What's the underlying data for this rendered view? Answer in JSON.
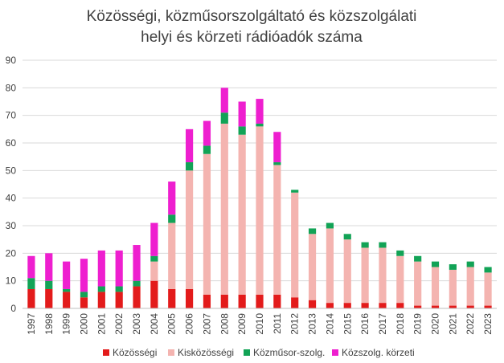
{
  "chart_data": {
    "type": "bar",
    "stacked": true,
    "title": [
      "Közösségi, közműsorszolgáltató és közszolgálati",
      "helyi és körzeti  rádióadók száma"
    ],
    "xlabel": "",
    "ylabel": "",
    "ylim": [
      0,
      90
    ],
    "yticks": [
      "0",
      "10",
      "20",
      "30",
      "40",
      "50",
      "60",
      "70",
      "80",
      "90"
    ],
    "grid": true,
    "legend_position": "bottom",
    "categories": [
      "1997",
      "1998",
      "1999",
      "2000",
      "2001",
      "2002",
      "2003",
      "2004",
      "2005",
      "2006",
      "2007",
      "2008",
      "2009",
      "2010",
      "2011",
      "2012",
      "2013",
      "2014",
      "2015",
      "2016",
      "2017",
      "2018",
      "2019",
      "2020",
      "2021",
      "2022",
      "2023"
    ],
    "series": [
      {
        "name": "Közösségi",
        "color": "#e31b1b",
        "values": [
          7,
          7,
          6,
          4,
          6,
          6,
          8,
          10,
          7,
          7,
          5,
          5,
          5,
          5,
          5,
          4,
          3,
          2,
          2,
          2,
          2,
          2,
          1,
          1,
          1,
          1,
          1
        ]
      },
      {
        "name": "Kisközösségi",
        "color": "#f4b4b0",
        "values": [
          0,
          0,
          0,
          0,
          0,
          0,
          0,
          7,
          24,
          43,
          51,
          62,
          58,
          61,
          47,
          38,
          24,
          27,
          23,
          20,
          20,
          17,
          16,
          14,
          13,
          14,
          12
        ]
      },
      {
        "name": "Közműsor-szolg.",
        "color": "#12a356",
        "values": [
          4,
          3,
          1,
          2,
          2,
          2,
          2,
          2,
          3,
          3,
          3,
          4,
          3,
          1,
          1,
          1,
          2,
          2,
          2,
          2,
          2,
          2,
          2,
          2,
          2,
          2,
          2
        ]
      },
      {
        "name": "Közszolg. körzeti",
        "color": "#ee1fcf",
        "values": [
          8,
          10,
          10,
          12,
          13,
          13,
          13,
          12,
          12,
          12,
          9,
          9,
          9,
          9,
          11,
          0,
          0,
          0,
          0,
          0,
          0,
          0,
          0,
          0,
          0,
          0,
          0
        ]
      }
    ]
  }
}
